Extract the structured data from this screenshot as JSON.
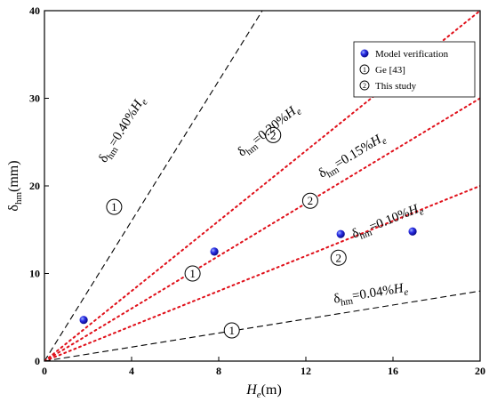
{
  "chart_data": {
    "type": "scatter",
    "xlabel": {
      "main": "H",
      "sub": "e",
      "unit": "(m)"
    },
    "ylabel": {
      "main": "δ",
      "sub": "hm",
      "unit": "(mm)"
    },
    "xlim": [
      0,
      20
    ],
    "ylim": [
      0,
      40
    ],
    "x_ticks": [
      0,
      4,
      8,
      12,
      16,
      20
    ],
    "y_ticks": [
      0,
      10,
      20,
      30,
      40
    ],
    "tick_labels_x": [
      "0",
      "4",
      "8",
      "12",
      "16",
      "20"
    ],
    "tick_labels_y": [
      "0",
      "10",
      "20",
      "30",
      "40"
    ],
    "grid": false,
    "legend_position": "top-right",
    "legend": {
      "model_verification": "Model verification",
      "source_1": "Ge [43]",
      "source_2": "This study"
    },
    "series": [
      {
        "name": "Model verification",
        "color": "#1a1adc",
        "points": [
          {
            "x": 1.8,
            "y": 4.7
          },
          {
            "x": 7.8,
            "y": 12.5
          },
          {
            "x": 13.6,
            "y": 14.5
          },
          {
            "x": 16.9,
            "y": 14.8
          }
        ]
      }
    ],
    "reference_lines": [
      {
        "ratio_percent": 0.4,
        "label": "δhm=0.40%He",
        "text_main": "δ",
        "text_sub": "hm",
        "text_eq": "=0.40%",
        "text_var": "H",
        "text_var_sub": "e",
        "color": "#000000",
        "style": "dashed",
        "x_end": 10,
        "label_x": 3.7,
        "label_y": 26.2
      },
      {
        "ratio_percent": 0.2,
        "label": "δhm=0.20%He",
        "text_main": "δ",
        "text_sub": "hm",
        "text_eq": "=0.20%",
        "text_var": "H",
        "text_var_sub": "e",
        "color": "#e0101a",
        "style": "dotted",
        "x_end": 20,
        "label_x": 10.4,
        "label_y": 26.0
      },
      {
        "ratio_percent": 0.15,
        "label": "δhm=0.15%He",
        "text_main": "δ",
        "text_sub": "hm",
        "text_eq": "=0.15%",
        "text_var": "H",
        "text_var_sub": "e",
        "color": "#e0101a",
        "style": "dotted",
        "x_end": 20,
        "label_x": 14.2,
        "label_y": 23.1
      },
      {
        "ratio_percent": 0.1,
        "label": "δhm=0.10%He",
        "text_main": "δ",
        "text_sub": "hm",
        "text_eq": "=0.10%",
        "text_var": "H",
        "text_var_sub": "e",
        "color": "#e0101a",
        "style": "dotted",
        "x_end": 20,
        "label_x": 15.8,
        "label_y": 15.6
      },
      {
        "ratio_percent": 0.04,
        "label": "δhm=0.04%He",
        "text_main": "δ",
        "text_sub": "hm",
        "text_eq": "=0.04%",
        "text_var": "H",
        "text_var_sub": "e",
        "color": "#000000",
        "style": "dashed",
        "x_end": 20,
        "label_x": 15.0,
        "label_y": 7.3
      }
    ],
    "source_markers": [
      {
        "symbol": "1",
        "x": 3.2,
        "y": 17.6
      },
      {
        "symbol": "1",
        "x": 6.8,
        "y": 10.0
      },
      {
        "symbol": "1",
        "x": 8.6,
        "y": 3.5
      },
      {
        "symbol": "2",
        "x": 10.5,
        "y": 25.8
      },
      {
        "symbol": "2",
        "x": 12.2,
        "y": 18.3
      },
      {
        "symbol": "2",
        "x": 13.5,
        "y": 11.8
      }
    ]
  }
}
